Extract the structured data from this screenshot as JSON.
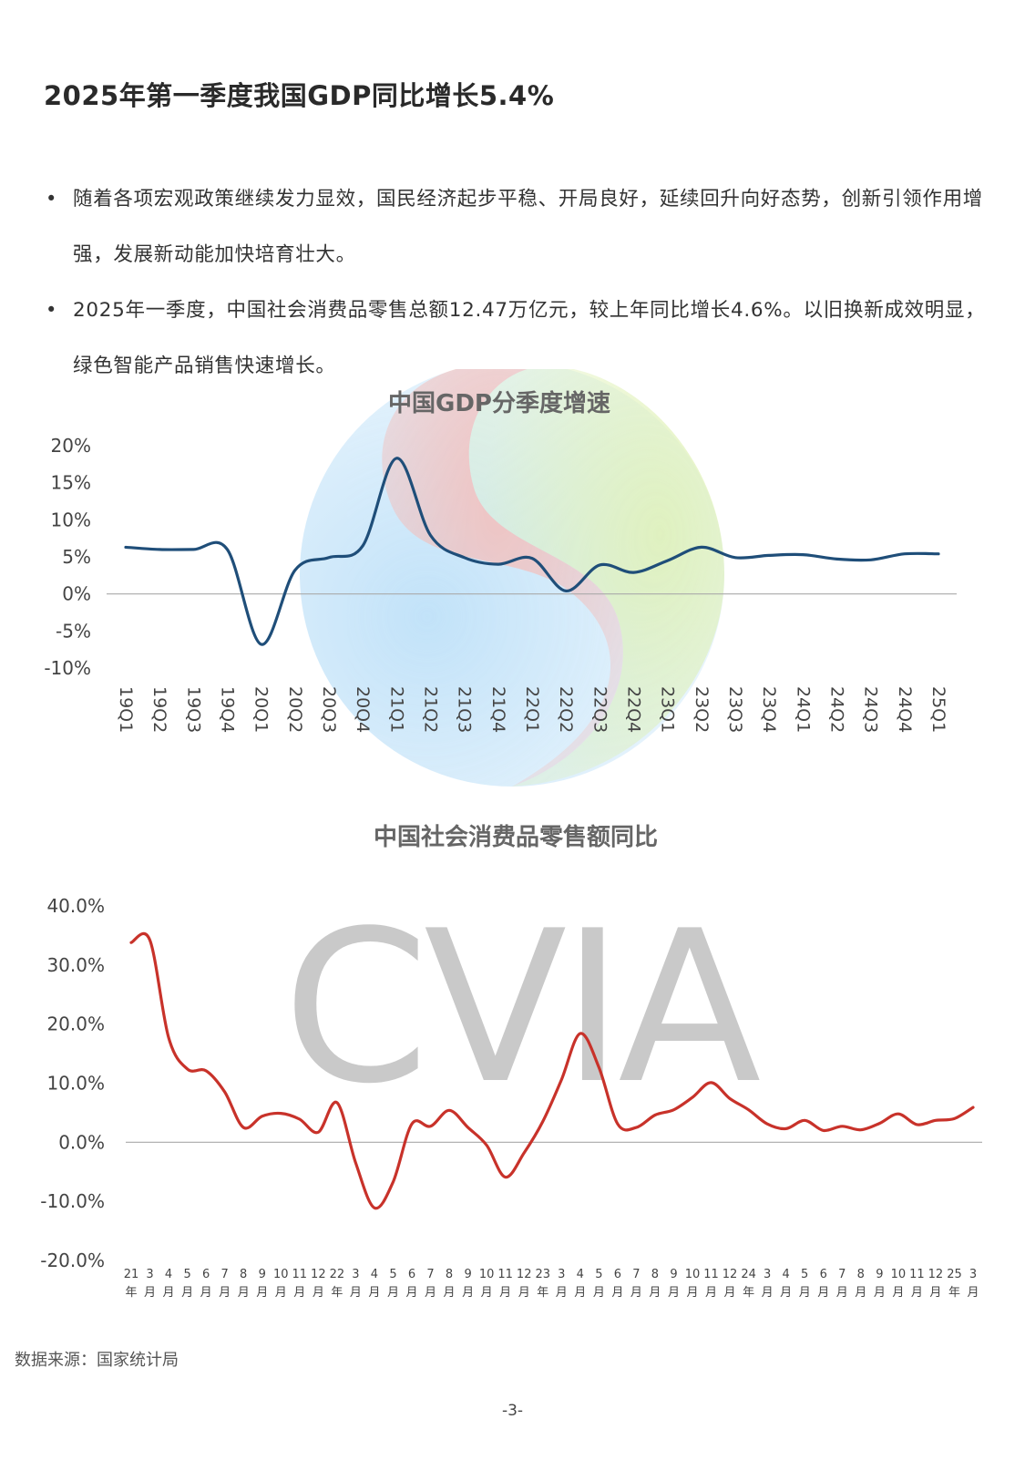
{
  "page": {
    "title": "2025年第一季度我国GDP同比增长5.4%",
    "bullets": [
      "随着各项宏观政策继续发力显效，国民经济起步平稳、开局良好，延续回升向好态势，创新引领作用增强，发展新动能加快培育壮大。",
      "2025年一季度，中国社会消费品零售总额12.47万亿元，较上年同比增长4.6%。以旧换新成效明显，绿色智能产品销售快速增长。"
    ],
    "bullet_marker": "•",
    "source": "数据来源：国家统计局",
    "page_number": "-3-",
    "watermark_text": "CVIA"
  },
  "colors": {
    "divider_start": "#1f4e79",
    "divider_end": "#e8604c",
    "gdp_line": "#1f4e79",
    "retail_line": "#c8322a",
    "zero_line": "#aaaaaa",
    "axis_text": "#444444",
    "chart_title": "#666666",
    "watermark": "#9e9e9e",
    "logo_blue": "#9fd2f5",
    "logo_red": "#f0a9a4",
    "logo_green": "#d4ec9c"
  },
  "chart_data": [
    {
      "type": "line",
      "title": "中国GDP分季度增速",
      "categories": [
        "19Q1",
        "19Q2",
        "19Q3",
        "19Q4",
        "20Q1",
        "20Q2",
        "20Q3",
        "20Q4",
        "21Q1",
        "21Q2",
        "21Q3",
        "21Q4",
        "22Q1",
        "22Q2",
        "22Q3",
        "22Q4",
        "23Q1",
        "23Q2",
        "23Q3",
        "23Q4",
        "24Q1",
        "24Q2",
        "24Q3",
        "24Q4",
        "25Q1"
      ],
      "values": [
        6.3,
        6.0,
        6.0,
        6.0,
        -6.8,
        3.2,
        4.9,
        6.5,
        18.3,
        7.9,
        4.9,
        4.0,
        4.8,
        0.4,
        3.9,
        2.9,
        4.5,
        6.3,
        4.9,
        5.2,
        5.3,
        4.7,
        4.6,
        5.4,
        5.4
      ],
      "ylim": [
        -10,
        20
      ],
      "yticks": [
        "20%",
        "15%",
        "10%",
        "5%",
        "0%",
        "-5%",
        "-10%"
      ],
      "ytick_values": [
        20,
        15,
        10,
        5,
        0,
        -5,
        -10
      ]
    },
    {
      "type": "line",
      "title": "中国社会消费品零售额同比",
      "categories": [
        [
          "21",
          "年"
        ],
        [
          "3",
          "月"
        ],
        [
          "4",
          "月"
        ],
        [
          "5",
          "月"
        ],
        [
          "6",
          "月"
        ],
        [
          "7",
          "月"
        ],
        [
          "8",
          "月"
        ],
        [
          "9",
          "月"
        ],
        [
          "10",
          "月"
        ],
        [
          "11",
          "月"
        ],
        [
          "12",
          "月"
        ],
        [
          "22",
          "年"
        ],
        [
          "3",
          "月"
        ],
        [
          "4",
          "月"
        ],
        [
          "5",
          "月"
        ],
        [
          "6",
          "月"
        ],
        [
          "7",
          "月"
        ],
        [
          "8",
          "月"
        ],
        [
          "9",
          "月"
        ],
        [
          "10",
          "月"
        ],
        [
          "11",
          "月"
        ],
        [
          "12",
          "月"
        ],
        [
          "23",
          "年"
        ],
        [
          "3",
          "月"
        ],
        [
          "4",
          "月"
        ],
        [
          "5",
          "月"
        ],
        [
          "6",
          "月"
        ],
        [
          "7",
          "月"
        ],
        [
          "8",
          "月"
        ],
        [
          "9",
          "月"
        ],
        [
          "10",
          "月"
        ],
        [
          "11",
          "月"
        ],
        [
          "12",
          "月"
        ],
        [
          "24",
          "年"
        ],
        [
          "3",
          "月"
        ],
        [
          "4",
          "月"
        ],
        [
          "5",
          "月"
        ],
        [
          "6",
          "月"
        ],
        [
          "7",
          "月"
        ],
        [
          "8",
          "月"
        ],
        [
          "9",
          "月"
        ],
        [
          "10",
          "月"
        ],
        [
          "11",
          "月"
        ],
        [
          "12",
          "月"
        ],
        [
          "25",
          "年"
        ],
        [
          "3",
          "月"
        ]
      ],
      "values": [
        33.8,
        34.2,
        17.7,
        12.4,
        12.1,
        8.5,
        2.5,
        4.4,
        4.9,
        3.9,
        1.7,
        6.7,
        -3.5,
        -11.1,
        -6.7,
        3.1,
        2.7,
        5.4,
        2.5,
        -0.5,
        -5.9,
        -1.8,
        3.5,
        10.6,
        18.4,
        12.7,
        3.1,
        2.5,
        4.6,
        5.5,
        7.6,
        10.1,
        7.4,
        5.5,
        3.1,
        2.3,
        3.7,
        2.0,
        2.7,
        2.1,
        3.2,
        4.8,
        3.0,
        3.7,
        4.0,
        5.9
      ],
      "ylim": [
        -20,
        40
      ],
      "yticks": [
        "40.0%",
        "30.0%",
        "20.0%",
        "10.0%",
        "0.0%",
        "-10.0%",
        "-20.0%"
      ],
      "ytick_values": [
        40,
        30,
        20,
        10,
        0,
        -10,
        -20
      ]
    }
  ]
}
